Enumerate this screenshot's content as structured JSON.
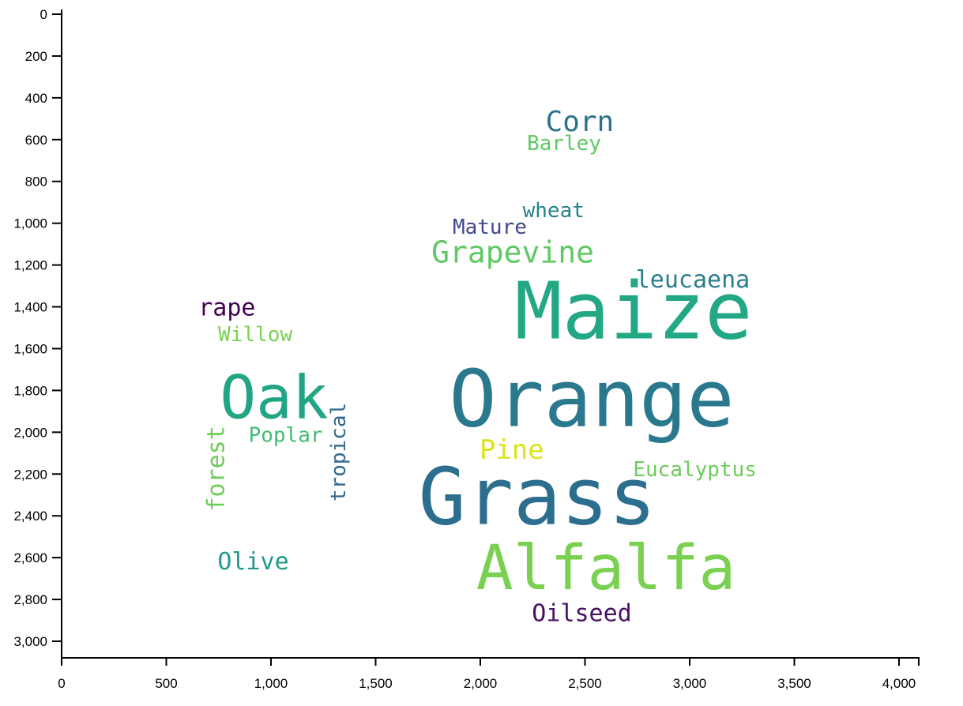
{
  "chart_data": {
    "type": "scatter",
    "subtype": "word-cloud",
    "title": "",
    "xlabel": "",
    "ylabel": "",
    "xlim": [
      0,
      4100
    ],
    "ylim": [
      0,
      3080
    ],
    "y_inverted": true,
    "grid": false,
    "x_ticks": [
      0,
      500,
      1000,
      1500,
      2000,
      2500,
      3000,
      3500,
      4000
    ],
    "x_tick_labels": [
      "0",
      "500",
      "1,000",
      "1,500",
      "2,000",
      "2,500",
      "3,000",
      "3,500",
      "4,000"
    ],
    "y_ticks": [
      0,
      200,
      400,
      600,
      800,
      1000,
      1200,
      1400,
      1600,
      1800,
      2000,
      2200,
      2400,
      2600,
      2800,
      3000
    ],
    "y_tick_labels": [
      "0",
      "200",
      "400",
      "600",
      "800",
      "1,000",
      "1,200",
      "1,400",
      "1,600",
      "1,800",
      "2,000",
      "2,200",
      "2,400",
      "2,600",
      "2,800",
      "3,000"
    ],
    "words": [
      {
        "text": "Maize",
        "x": 2732,
        "y": 1420,
        "size": 100,
        "rotate": 0,
        "color": "#22a884"
      },
      {
        "text": "Orange",
        "x": 2532,
        "y": 1840,
        "size": 100,
        "rotate": 0,
        "color": "#2a788e"
      },
      {
        "text": "Grass",
        "x": 2272,
        "y": 2308,
        "size": 100,
        "rotate": 0,
        "color": "#2c6e8e"
      },
      {
        "text": "Alfalfa",
        "x": 2600,
        "y": 2652,
        "size": 78,
        "rotate": 0,
        "color": "#7ad151"
      },
      {
        "text": "Oak",
        "x": 1015,
        "y": 1832,
        "size": 76,
        "rotate": 0,
        "color": "#21a585"
      },
      {
        "text": "Grapevine",
        "x": 2155,
        "y": 1140,
        "size": 38,
        "rotate": 0,
        "color": "#5ec962"
      },
      {
        "text": "Corn",
        "x": 2475,
        "y": 516,
        "size": 36,
        "rotate": 0,
        "color": "#2c728e"
      },
      {
        "text": "Barley",
        "x": 2400,
        "y": 620,
        "size": 26,
        "rotate": 0,
        "color": "#5ec962"
      },
      {
        "text": "wheat",
        "x": 2350,
        "y": 940,
        "size": 26,
        "rotate": 0,
        "color": "#27808e"
      },
      {
        "text": "Mature",
        "x": 2045,
        "y": 1020,
        "size": 26,
        "rotate": 0,
        "color": "#3e4989"
      },
      {
        "text": "leucaena",
        "x": 3015,
        "y": 1272,
        "size": 30,
        "rotate": 0,
        "color": "#287d8e"
      },
      {
        "text": "rape",
        "x": 790,
        "y": 1405,
        "size": 30,
        "rotate": 0,
        "color": "#440154"
      },
      {
        "text": "Willow",
        "x": 925,
        "y": 1534,
        "size": 26,
        "rotate": 0,
        "color": "#7ad151"
      },
      {
        "text": "Poplar",
        "x": 1070,
        "y": 2016,
        "size": 26,
        "rotate": 0,
        "color": "#3fbc73"
      },
      {
        "text": "tropical",
        "x": 1325,
        "y": 2095,
        "size": 26,
        "rotate": -90,
        "color": "#31688e"
      },
      {
        "text": "forest",
        "x": 740,
        "y": 2174,
        "size": 30,
        "rotate": -90,
        "color": "#6ccd5a"
      },
      {
        "text": "Pine",
        "x": 2150,
        "y": 2086,
        "size": 34,
        "rotate": 0,
        "color": "#dde318"
      },
      {
        "text": "Eucalyptus",
        "x": 3025,
        "y": 2181,
        "size": 26,
        "rotate": 0,
        "color": "#6ccd5a"
      },
      {
        "text": "Olive",
        "x": 915,
        "y": 2621,
        "size": 30,
        "rotate": 0,
        "color": "#1f9a8a"
      },
      {
        "text": "Oilseed",
        "x": 2485,
        "y": 2868,
        "size": 30,
        "rotate": 0,
        "color": "#471063"
      }
    ]
  }
}
